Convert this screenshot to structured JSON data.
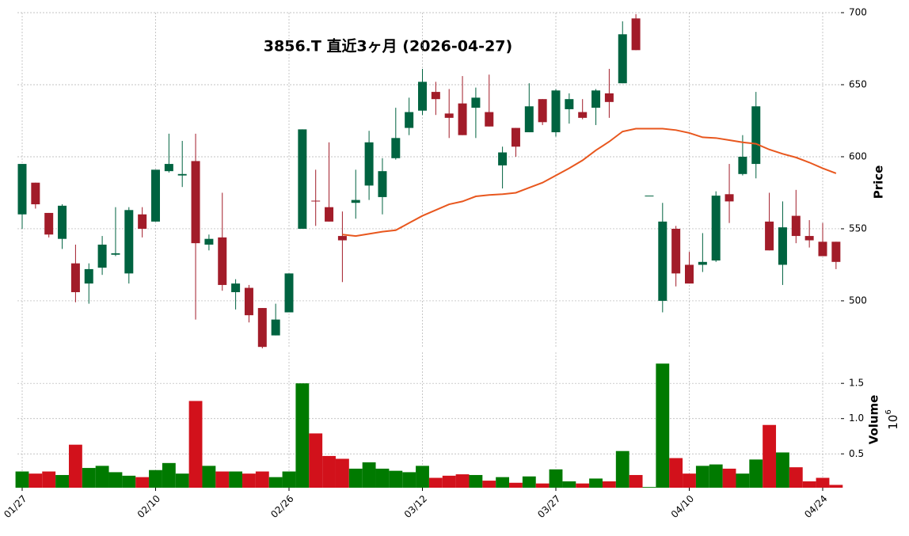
{
  "chart_data": {
    "type": "candlestick",
    "title": "3856.T 直近3ヶ月 (2026-04-27)",
    "y_label": "Price",
    "y2_label": "Volume",
    "y2_scale": {
      "base": "10",
      "exponent": "6"
    },
    "categories": [
      "01/27",
      null,
      null,
      null,
      null,
      null,
      null,
      null,
      null,
      null,
      "02/10",
      null,
      null,
      null,
      null,
      null,
      null,
      null,
      null,
      null,
      "02/26",
      null,
      null,
      null,
      null,
      null,
      null,
      null,
      null,
      null,
      "03/12",
      null,
      null,
      null,
      null,
      null,
      null,
      null,
      null,
      null,
      "03/27",
      null,
      null,
      null,
      null,
      null,
      null,
      null,
      null,
      null,
      "04/10",
      null,
      null,
      null,
      null,
      null,
      null,
      null,
      null,
      null,
      "04/24",
      null
    ],
    "open": [
      560,
      582,
      561,
      543,
      526,
      512,
      523,
      532,
      519,
      560,
      555,
      590,
      587,
      597,
      539,
      544,
      506,
      509,
      495,
      476,
      492,
      550,
      569.5,
      565,
      545,
      568,
      580,
      572,
      599,
      620,
      632,
      645,
      630,
      637,
      634,
      631,
      594,
      620,
      617,
      640,
      617,
      633,
      631,
      634,
      644,
      651,
      696,
      573,
      500,
      550,
      525,
      525,
      528,
      574,
      588,
      595,
      555,
      525,
      559,
      545,
      541,
      541
    ],
    "high": [
      595,
      582,
      561,
      567,
      539,
      526,
      545,
      565,
      565,
      565,
      591,
      616,
      611,
      616,
      546,
      575,
      515,
      511,
      495,
      498,
      519,
      619,
      591,
      610,
      562,
      591,
      618,
      599,
      634,
      641,
      661,
      652,
      647,
      656,
      648,
      657,
      607,
      620,
      651,
      640,
      647,
      644,
      640,
      647,
      661,
      694,
      699,
      573,
      568,
      552,
      534,
      547,
      576,
      595,
      615,
      645,
      575,
      569,
      577,
      556,
      554,
      541
    ],
    "low": [
      550,
      564,
      544,
      536,
      499,
      498,
      518,
      531,
      512,
      544,
      555,
      589,
      579,
      487,
      535,
      507,
      494,
      485,
      467,
      476,
      492,
      550,
      552,
      555,
      513,
      557,
      570,
      560,
      598,
      615,
      629,
      629,
      613,
      615,
      613,
      621,
      578,
      600,
      617,
      622,
      614,
      623,
      626,
      622,
      627,
      651,
      674,
      573,
      492,
      510,
      512,
      520,
      527,
      554,
      587,
      585,
      535,
      511,
      540,
      537,
      531,
      522
    ],
    "close": [
      595,
      567,
      546,
      566,
      506,
      522,
      539,
      533,
      563,
      550,
      591,
      595,
      588,
      540,
      543,
      511,
      512,
      490,
      468,
      487,
      519,
      619,
      569,
      555,
      542,
      570,
      610,
      590,
      613,
      631,
      652,
      640,
      627,
      615,
      641,
      621,
      603,
      607,
      635,
      624,
      646,
      640,
      627,
      646,
      638,
      685,
      674,
      573,
      555,
      519,
      512,
      527,
      573,
      569,
      600,
      635,
      535,
      551,
      545,
      542,
      531,
      527
    ],
    "volume": [
      0.25,
      0.22,
      0.25,
      0.2,
      0.63,
      0.3,
      0.33,
      0.24,
      0.19,
      0.17,
      0.27,
      0.37,
      0.22,
      1.25,
      0.33,
      0.25,
      0.25,
      0.22,
      0.25,
      0.17,
      0.25,
      1.5,
      0.79,
      0.47,
      0.43,
      0.29,
      0.38,
      0.29,
      0.26,
      0.24,
      0.33,
      0.16,
      0.19,
      0.21,
      0.2,
      0.12,
      0.17,
      0.09,
      0.18,
      0.08,
      0.28,
      0.11,
      0.08,
      0.15,
      0.11,
      0.54,
      0.2,
      0.03,
      1.78,
      0.44,
      0.22,
      0.33,
      0.35,
      0.29,
      0.22,
      0.42,
      0.91,
      0.52,
      0.31,
      0.11,
      0.16,
      0.06
    ],
    "series": [
      {
        "color": "#e8571e",
        "values": [
          null,
          null,
          null,
          null,
          null,
          null,
          null,
          null,
          null,
          null,
          null,
          null,
          null,
          null,
          null,
          null,
          null,
          null,
          null,
          null,
          null,
          null,
          null,
          null,
          546,
          545,
          546.5,
          548,
          549,
          554,
          559,
          563,
          567,
          569,
          572.5,
          573.5,
          574,
          575,
          578.5,
          582,
          587,
          592,
          597.5,
          604.5,
          610.5,
          617.5,
          619.5,
          619.5,
          619.5,
          618.5,
          616.5,
          613.5,
          613,
          611.5,
          610,
          609,
          605,
          602,
          599.5,
          596,
          592,
          588.5
        ]
      }
    ],
    "up_color": "#006340",
    "down_color": "#a21c29",
    "volume_up_color": "#007a00",
    "volume_down_color": "#d2111b",
    "ylim": [
      467,
      700
    ],
    "yticks": [
      500,
      550,
      600,
      650,
      700
    ],
    "y2lim": [
      0.02,
      1.94
    ],
    "y2ticks": [
      0.5,
      {
        "value": 1.0,
        "label": "1.0"
      },
      1.5
    ],
    "grid": true
  }
}
